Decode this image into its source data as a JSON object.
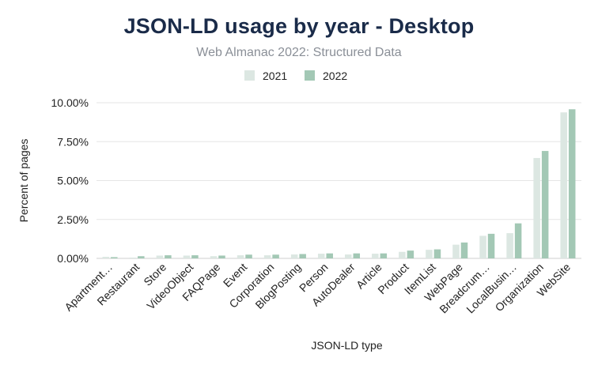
{
  "chart_data": {
    "type": "bar",
    "title": "JSON-LD usage by year - Desktop",
    "subtitle": "Web Almanac 2022: Structured Data",
    "xlabel": "JSON-LD type",
    "ylabel": "Percent of pages",
    "ylim": [
      0,
      10
    ],
    "yticks": [
      "0.00%",
      "2.50%",
      "5.00%",
      "7.50%",
      "10.00%"
    ],
    "ytick_values": [
      0,
      2.5,
      5,
      7.5,
      10
    ],
    "categories": [
      "Apartment…",
      "Restaurant",
      "Store",
      "VideoObject",
      "FAQPage",
      "Event",
      "Corporation",
      "BlogPosting",
      "Person",
      "AutoDealer",
      "Article",
      "Product",
      "ItemList",
      "WebPage",
      "Breadcrum…",
      "LocalBusin…",
      "Organization",
      "WebSite"
    ],
    "series": [
      {
        "name": "2021",
        "color": "#dce7e2",
        "values": [
          0.1,
          0.05,
          0.18,
          0.18,
          0.14,
          0.2,
          0.2,
          0.25,
          0.3,
          0.25,
          0.3,
          0.42,
          0.55,
          0.88,
          1.45,
          1.62,
          6.45,
          9.38
        ]
      },
      {
        "name": "2022",
        "color": "#a3c8b5",
        "values": [
          0.08,
          0.14,
          0.2,
          0.2,
          0.18,
          0.24,
          0.24,
          0.28,
          0.32,
          0.32,
          0.32,
          0.5,
          0.58,
          1.02,
          1.58,
          2.25,
          6.9,
          9.58
        ]
      }
    ],
    "legend_position": "top-center",
    "grid": true
  }
}
